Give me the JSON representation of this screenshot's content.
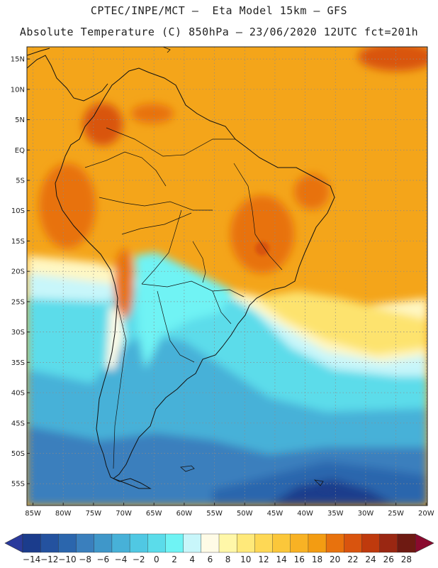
{
  "header": {
    "line1": "CPTEC/INPE/MCT –  Eta Model 15km – GFS",
    "line2": "Absolute Temperature (C) 850hPa – 23/06/2020 12UTC fct=201h"
  },
  "axes": {
    "lat_labels": [
      "15N",
      "10N",
      "5N",
      "EQ",
      "5S",
      "10S",
      "15S",
      "20S",
      "25S",
      "30S",
      "35S",
      "40S",
      "45S",
      "50S",
      "55S"
    ],
    "lon_labels": [
      "85W",
      "80W",
      "75W",
      "70W",
      "65W",
      "60W",
      "55W",
      "50W",
      "45W",
      "40W",
      "35W",
      "30W",
      "25W",
      "20W"
    ]
  },
  "colorbar": {
    "labels": [
      "-14",
      "-12",
      "-10",
      "-8",
      "-6",
      "-4",
      "-2",
      "0",
      "2",
      "4",
      "6",
      "8",
      "10",
      "12",
      "14",
      "16",
      "18",
      "20",
      "22",
      "24",
      "26",
      "28"
    ],
    "colors": [
      "#1b3c8c",
      "#24529f",
      "#2b66ad",
      "#3a7fbd",
      "#3f97c9",
      "#47b1d8",
      "#50c8e3",
      "#5bdcea",
      "#6ff3f4",
      "#c8f6fa",
      "#fffbe6",
      "#fff7a8",
      "#ffe97a",
      "#fed855",
      "#fbc73a",
      "#f8b224",
      "#f39c12",
      "#e8720d",
      "#d9540e",
      "#bf3a0d",
      "#9a2712",
      "#6e1a12"
    ],
    "under_color": "#2a3a9c",
    "over_color": "#8a0a2e"
  }
}
